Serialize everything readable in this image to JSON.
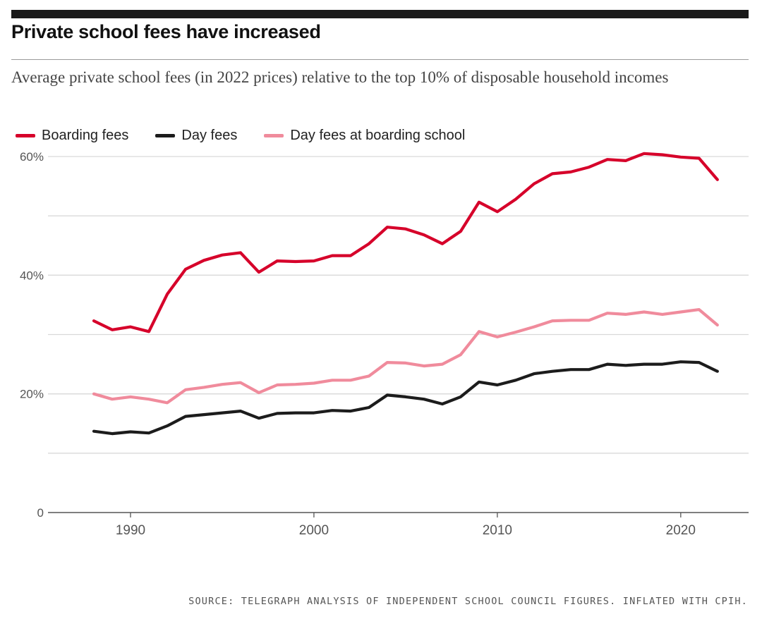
{
  "header": {
    "title": "Private school fees have increased",
    "subtitle": "Average private school fees (in 2022 prices) relative to the top 10% of disposable household incomes"
  },
  "legend": {
    "items": [
      {
        "label": "Boarding fees",
        "color": "#d6002a"
      },
      {
        "label": "Day fees",
        "color": "#1c1c1c"
      },
      {
        "label": "Day fees at boarding school",
        "color": "#f08b9c"
      }
    ]
  },
  "footer": {
    "source": "SOURCE: TELEGRAPH ANALYSIS OF INDEPENDENT SCHOOL COUNCIL FIGURES. INFLATED WITH CPIH."
  },
  "chart_data": {
    "type": "line",
    "title": "Private school fees have increased",
    "subtitle": "Average private school fees (in 2022 prices) relative to the top 10% of disposable household incomes",
    "xlabel": "",
    "ylabel": "",
    "xlim": [
      1985.5,
      2023.7
    ],
    "ylim": [
      0,
      60
    ],
    "grid": true,
    "legend_position": "top-left",
    "x": [
      1988,
      1989,
      1990,
      1991,
      1992,
      1993,
      1994,
      1995,
      1996,
      1997,
      1998,
      1999,
      2000,
      2001,
      2002,
      2003,
      2004,
      2005,
      2006,
      2007,
      2008,
      2009,
      2010,
      2011,
      2012,
      2013,
      2014,
      2015,
      2016,
      2017,
      2018,
      2019,
      2020,
      2021,
      2022
    ],
    "yticks": [
      {
        "value": 0,
        "label": "0"
      },
      {
        "value": 10,
        "label": ""
      },
      {
        "value": 20,
        "label": "20%"
      },
      {
        "value": 30,
        "label": ""
      },
      {
        "value": 40,
        "label": "40%"
      },
      {
        "value": 50,
        "label": ""
      },
      {
        "value": 60,
        "label": "60%"
      }
    ],
    "xticks": [
      {
        "value": 1990,
        "label": "1990"
      },
      {
        "value": 2000,
        "label": "2000"
      },
      {
        "value": 2010,
        "label": "2010"
      },
      {
        "value": 2020,
        "label": "2020"
      }
    ],
    "series": [
      {
        "name": "Boarding fees",
        "color": "#d6002a",
        "values": [
          32.3,
          30.8,
          31.3,
          30.5,
          36.8,
          41.0,
          42.5,
          43.4,
          43.8,
          40.5,
          42.4,
          42.3,
          42.4,
          43.3,
          43.3,
          45.3,
          48.1,
          47.8,
          46.8,
          45.3,
          47.4,
          52.3,
          50.7,
          52.8,
          55.4,
          57.1,
          57.4,
          58.2,
          59.5,
          59.3,
          60.5,
          60.3,
          59.9,
          59.7,
          56.1
        ]
      },
      {
        "name": "Day fees",
        "color": "#1c1c1c",
        "values": [
          13.7,
          13.3,
          13.6,
          13.4,
          14.6,
          16.2,
          16.5,
          16.8,
          17.1,
          15.9,
          16.7,
          16.8,
          16.8,
          17.2,
          17.1,
          17.7,
          19.8,
          19.5,
          19.1,
          18.3,
          19.5,
          22.0,
          21.5,
          22.3,
          23.4,
          23.8,
          24.1,
          24.1,
          25.0,
          24.8,
          25.0,
          25.0,
          25.4,
          25.3,
          23.8
        ]
      },
      {
        "name": "Day fees at boarding school",
        "color": "#f08b9c",
        "values": [
          20.0,
          19.1,
          19.5,
          19.1,
          18.5,
          20.7,
          21.1,
          21.6,
          21.9,
          20.2,
          21.5,
          21.6,
          21.8,
          22.3,
          22.3,
          23.0,
          25.3,
          25.2,
          24.7,
          25.0,
          26.6,
          30.5,
          29.6,
          30.4,
          31.3,
          32.3,
          32.4,
          32.4,
          33.6,
          33.4,
          33.8,
          33.4,
          33.8,
          34.2,
          31.6
        ]
      }
    ]
  }
}
